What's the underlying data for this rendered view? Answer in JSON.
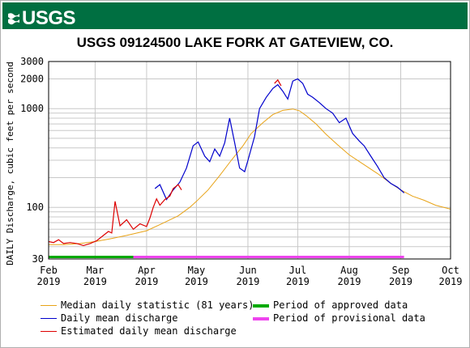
{
  "header": {
    "logo_text": "USGS",
    "brand_color": "#006f41"
  },
  "chart_data": {
    "type": "line",
    "title": "USGS 09124500 LAKE FORK AT GATEVIEW, CO.",
    "ylabel": "DAILY Discharge, cubic feet per second",
    "xlabel": "",
    "y_scale": "log",
    "ylim": [
      30,
      3000
    ],
    "y_ticks": [
      30,
      100,
      1000,
      2000,
      3000
    ],
    "y_tick_labels": [
      "30",
      "100",
      "1000",
      "2000",
      "3000"
    ],
    "x_range": [
      "2019-02-01",
      "2019-10-01"
    ],
    "x_ticks": [
      {
        "date": "2019-02-01",
        "month": "Feb",
        "year": "2019"
      },
      {
        "date": "2019-03-01",
        "month": "Mar",
        "year": "2019"
      },
      {
        "date": "2019-04-01",
        "month": "Apr",
        "year": "2019"
      },
      {
        "date": "2019-05-01",
        "month": "May",
        "year": "2019"
      },
      {
        "date": "2019-06-01",
        "month": "Jun",
        "year": "2019"
      },
      {
        "date": "2019-07-01",
        "month": "Jul",
        "year": "2019"
      },
      {
        "date": "2019-08-01",
        "month": "Aug",
        "year": "2019"
      },
      {
        "date": "2019-09-01",
        "month": "Sep",
        "year": "2019"
      },
      {
        "date": "2019-10-01",
        "month": "Oct",
        "year": "2019"
      }
    ],
    "grid": true,
    "series": [
      {
        "name": "Median daily statistic (81 years)",
        "color": "#e8a317",
        "points": [
          [
            "2019-02-01",
            42
          ],
          [
            "2019-02-10",
            42
          ],
          [
            "2019-02-20",
            43
          ],
          [
            "2019-03-01",
            45
          ],
          [
            "2019-03-10",
            48
          ],
          [
            "2019-03-20",
            52
          ],
          [
            "2019-04-01",
            58
          ],
          [
            "2019-04-10",
            68
          ],
          [
            "2019-04-20",
            82
          ],
          [
            "2019-04-27",
            100
          ],
          [
            "2019-05-01",
            115
          ],
          [
            "2019-05-08",
            150
          ],
          [
            "2019-05-15",
            210
          ],
          [
            "2019-05-22",
            300
          ],
          [
            "2019-05-29",
            420
          ],
          [
            "2019-06-03",
            560
          ],
          [
            "2019-06-10",
            720
          ],
          [
            "2019-06-16",
            870
          ],
          [
            "2019-06-22",
            960
          ],
          [
            "2019-06-28",
            990
          ],
          [
            "2019-07-02",
            950
          ],
          [
            "2019-07-06",
            850
          ],
          [
            "2019-07-12",
            700
          ],
          [
            "2019-07-18",
            550
          ],
          [
            "2019-07-25",
            430
          ],
          [
            "2019-08-01",
            340
          ],
          [
            "2019-08-10",
            270
          ],
          [
            "2019-08-18",
            220
          ],
          [
            "2019-08-25",
            180
          ],
          [
            "2019-09-01",
            150
          ],
          [
            "2019-09-08",
            130
          ],
          [
            "2019-09-15",
            118
          ],
          [
            "2019-09-22",
            105
          ],
          [
            "2019-10-01",
            96
          ]
        ]
      },
      {
        "name": "Daily mean discharge",
        "color": "#0000cc",
        "points": [
          [
            "2019-06-01",
            300
          ],
          [
            "2019-06-05",
            520
          ],
          [
            "2019-06-08",
            1000
          ],
          [
            "2019-06-12",
            1300
          ],
          [
            "2019-06-16",
            1600
          ],
          [
            "2019-06-19",
            1750
          ],
          [
            "2019-06-22",
            1500
          ],
          [
            "2019-06-25",
            1250
          ],
          [
            "2019-06-28",
            1900
          ],
          [
            "2019-07-01",
            2000
          ],
          [
            "2019-07-04",
            1800
          ],
          [
            "2019-07-07",
            1400
          ],
          [
            "2019-07-10",
            1300
          ],
          [
            "2019-07-14",
            1150
          ],
          [
            "2019-07-18",
            1000
          ],
          [
            "2019-07-22",
            900
          ],
          [
            "2019-07-26",
            720
          ],
          [
            "2019-07-30",
            800
          ],
          [
            "2019-08-03",
            560
          ],
          [
            "2019-08-07",
            470
          ],
          [
            "2019-08-10",
            420
          ],
          [
            "2019-08-14",
            330
          ],
          [
            "2019-08-18",
            260
          ],
          [
            "2019-08-22",
            200
          ],
          [
            "2019-08-26",
            175
          ],
          [
            "2019-08-30",
            160
          ],
          [
            "2019-09-02",
            145
          ],
          [
            "2019-09-03",
            140
          ]
        ],
        "pre_segment": [
          [
            "2019-04-06",
            155
          ],
          [
            "2019-04-09",
            170
          ],
          [
            "2019-04-13",
            120
          ],
          [
            "2019-04-17",
            150
          ],
          [
            "2019-04-21",
            180
          ],
          [
            "2019-04-25",
            250
          ],
          [
            "2019-04-29",
            420
          ],
          [
            "2019-05-02",
            460
          ],
          [
            "2019-05-06",
            330
          ],
          [
            "2019-05-09",
            290
          ],
          [
            "2019-05-12",
            390
          ],
          [
            "2019-05-15",
            330
          ],
          [
            "2019-05-18",
            450
          ],
          [
            "2019-05-21",
            800
          ],
          [
            "2019-05-24",
            450
          ],
          [
            "2019-05-27",
            250
          ],
          [
            "2019-05-30",
            230
          ],
          [
            "2019-06-01",
            300
          ]
        ]
      },
      {
        "name": "Estimated daily mean discharge",
        "color": "#dd0000",
        "points": [
          [
            "2019-02-01",
            45
          ],
          [
            "2019-02-04",
            44
          ],
          [
            "2019-02-07",
            47
          ],
          [
            "2019-02-10",
            43
          ],
          [
            "2019-02-14",
            44
          ],
          [
            "2019-02-18",
            43
          ],
          [
            "2019-02-22",
            41
          ],
          [
            "2019-02-26",
            43
          ],
          [
            "2019-03-02",
            46
          ],
          [
            "2019-03-06",
            52
          ],
          [
            "2019-03-09",
            57
          ],
          [
            "2019-03-11",
            55
          ],
          [
            "2019-03-13",
            115
          ],
          [
            "2019-03-16",
            65
          ],
          [
            "2019-03-20",
            75
          ],
          [
            "2019-03-24",
            60
          ],
          [
            "2019-03-28",
            68
          ],
          [
            "2019-04-01",
            64
          ],
          [
            "2019-04-03",
            78
          ],
          [
            "2019-04-05",
            100
          ],
          [
            "2019-04-07",
            122
          ],
          [
            "2019-04-09",
            105
          ],
          [
            "2019-04-12",
            120
          ],
          [
            "2019-04-15",
            130
          ],
          [
            "2019-04-17",
            155
          ],
          [
            "2019-04-20",
            170
          ],
          [
            "2019-04-22",
            150
          ],
          [
            "2019-06-17",
            1800
          ],
          [
            "2019-06-19",
            1950
          ],
          [
            "2019-06-21",
            1700
          ]
        ]
      }
    ],
    "periods": [
      {
        "name": "Period of approved data",
        "color": "#00aa00",
        "start": "2019-02-01",
        "end": "2019-03-24"
      },
      {
        "name": "Period of provisional data",
        "color": "#ee44ee",
        "start": "2019-03-24",
        "end": "2019-09-03"
      }
    ],
    "legend": {
      "placement": "bottom"
    }
  }
}
